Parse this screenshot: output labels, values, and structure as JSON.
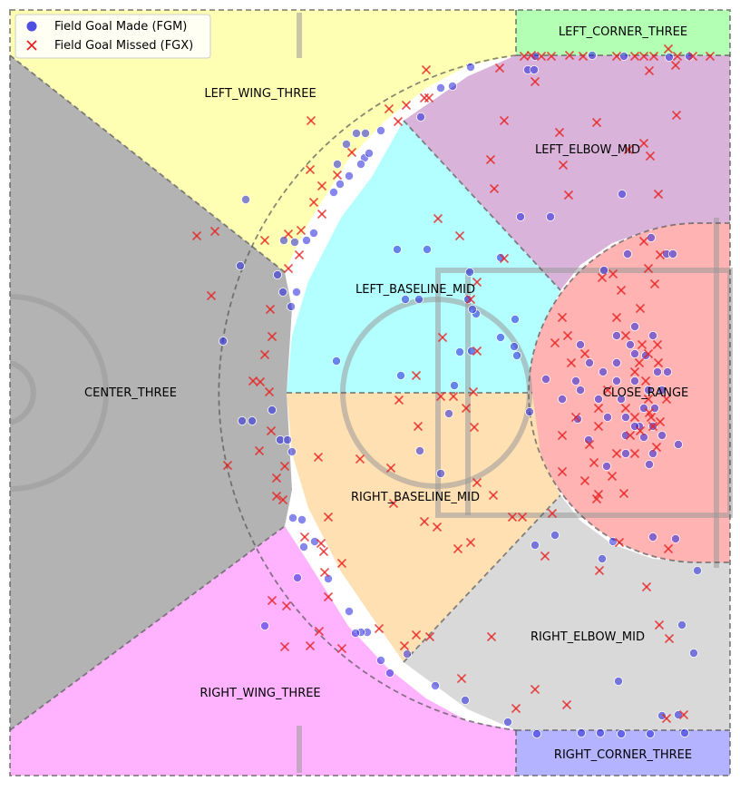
{
  "chart_data": {
    "type": "scatter",
    "title": "",
    "xlabel": "",
    "ylabel": "",
    "axes_visible": false,
    "grid": false,
    "legend": {
      "placement": "top-left",
      "entries": [
        {
          "label": "Field Goal Made (FGM)",
          "marker": "circle",
          "color": "#2222dd"
        },
        {
          "label": "Field Goal Missed (FGX)",
          "marker": "x",
          "color": "#e82020"
        }
      ]
    },
    "zones": [
      {
        "label": "LEFT_CORNER_THREE",
        "color": "#b3ffb3"
      },
      {
        "label": "LEFT_WING_THREE",
        "color": "#ffffb3"
      },
      {
        "label": "LEFT_ELBOW_MID",
        "color": "#d9b3d9"
      },
      {
        "label": "LEFT_BASELINE_MID",
        "color": "#b3ffff"
      },
      {
        "label": "CENTER_THREE",
        "color": "#b3b3b3"
      },
      {
        "label": "CLOSE_RANGE",
        "color": "#ffb3b3"
      },
      {
        "label": "RIGHT_BASELINE_MID",
        "color": "#ffe0b3"
      },
      {
        "label": "RIGHT_ELBOW_MID",
        "color": "#d9d9d9"
      },
      {
        "label": "RIGHT_WING_THREE",
        "color": "#ffb3ff"
      },
      {
        "label": "RIGHT_CORNER_THREE",
        "color": "#b3b3ff"
      }
    ],
    "series": [
      {
        "name": "Field Goal Made (FGM)",
        "marker": "circle",
        "color": "#2222dd",
        "points": [
          [
            582,
            77
          ],
          [
            589,
            77
          ],
          [
            590,
            62
          ],
          [
            653,
            61
          ],
          [
            688,
            62
          ],
          [
            738,
            63
          ],
          [
            760,
            62
          ],
          [
            519,
            74
          ],
          [
            499,
            95
          ],
          [
            486,
            97
          ],
          [
            464,
            129
          ],
          [
            420,
            144
          ],
          [
            393,
            147
          ],
          [
            403,
            147
          ],
          [
            382,
            159
          ],
          [
            372,
            181
          ],
          [
            402,
            174
          ],
          [
            407,
            169
          ],
          [
            398,
            181
          ],
          [
            385,
            194
          ],
          [
            375,
            203
          ],
          [
            368,
            212
          ],
          [
            271,
            220
          ],
          [
            313,
            265
          ],
          [
            325,
            267
          ],
          [
            338,
            265
          ],
          [
            346,
            257
          ],
          [
            265,
            293
          ],
          [
            306,
            303
          ],
          [
            327,
            322
          ],
          [
            312,
            322
          ],
          [
            321,
            338
          ],
          [
            246,
            376
          ],
          [
            267,
            464
          ],
          [
            278,
            464
          ],
          [
            300,
            452
          ],
          [
            309,
            485
          ],
          [
            317,
            485
          ],
          [
            322,
            498
          ],
          [
            323,
            571
          ],
          [
            333,
            573
          ],
          [
            438,
            275
          ],
          [
            471,
            275
          ],
          [
            447,
            330
          ],
          [
            462,
            330
          ],
          [
            518,
            300
          ],
          [
            552,
            284
          ],
          [
            516,
            330
          ],
          [
            525,
            346
          ],
          [
            521,
            341
          ],
          [
            568,
            352
          ],
          [
            552,
            372
          ],
          [
            567,
            382
          ],
          [
            570,
            392
          ],
          [
            520,
            387
          ],
          [
            507,
            388
          ],
          [
            442,
            414
          ],
          [
            501,
            425
          ],
          [
            371,
            398
          ],
          [
            495,
            456
          ],
          [
            463,
            497
          ],
          [
            486,
            522
          ],
          [
            574,
            239
          ],
          [
            607,
            239
          ],
          [
            686,
            214
          ],
          [
            718,
            262
          ],
          [
            666,
            298
          ],
          [
            692,
            280
          ],
          [
            735,
            280
          ],
          [
            742,
            280
          ],
          [
            584,
            454
          ],
          [
            602,
            418
          ],
          [
            620,
            440
          ],
          [
            637,
            462
          ],
          [
            649,
            485
          ],
          [
            669,
            514
          ],
          [
            716,
            512
          ],
          [
            748,
            490
          ],
          [
            590,
            601
          ],
          [
            612,
            590
          ],
          [
            664,
            616
          ],
          [
            676,
            597
          ],
          [
            720,
            592
          ],
          [
            745,
            594
          ],
          [
            769,
            629
          ],
          [
            752,
            689
          ],
          [
            765,
            720
          ],
          [
            730,
            789
          ],
          [
            748,
            788
          ],
          [
            755,
            808
          ],
          [
            717,
            809
          ],
          [
            685,
            809
          ],
          [
            662,
            808
          ],
          [
            641,
            808
          ],
          [
            592,
            809
          ],
          [
            682,
            751
          ],
          [
            560,
            796
          ],
          [
            513,
            772
          ],
          [
            480,
            756
          ],
          [
            449,
            721
          ],
          [
            430,
            742
          ],
          [
            420,
            728
          ],
          [
            405,
            697
          ],
          [
            398,
            697
          ],
          [
            392,
            698
          ],
          [
            385,
            674
          ],
          [
            362,
            638
          ],
          [
            328,
            637
          ],
          [
            292,
            690
          ],
          [
            335,
            603
          ],
          [
            347,
            597
          ],
          [
            640,
            430
          ],
          [
            660,
            440
          ],
          [
            680,
            400
          ],
          [
            700,
            420
          ],
          [
            710,
            450
          ],
          [
            720,
            470
          ],
          [
            690,
            480
          ],
          [
            670,
            460
          ],
          [
            700,
            390
          ],
          [
            725,
            410
          ],
          [
            715,
            430
          ],
          [
            705,
            470
          ],
          [
            690,
            460
          ],
          [
            680,
            420
          ],
          [
            695,
            380
          ],
          [
            712,
            392
          ],
          [
            730,
            430
          ],
          [
            722,
            450
          ],
          [
            700,
            470
          ],
          [
            685,
            440
          ],
          [
            710,
            482
          ],
          [
            730,
            480
          ],
          [
            720,
            370
          ],
          [
            700,
            360
          ],
          [
            665,
            410
          ],
          [
            650,
            400
          ],
          [
            635,
            420
          ],
          [
            640,
            380
          ],
          [
            690,
            500
          ],
          [
            720,
            500
          ],
          [
            736,
            410
          ],
          [
            680,
            370
          ]
        ]
      },
      {
        "name": "Field Goal Missed (FGX)",
        "marker": "x",
        "color": "#e82020",
        "points": [
          [
            586,
            61
          ],
          [
            597,
            62
          ],
          [
            608,
            62
          ],
          [
            628,
            61
          ],
          [
            643,
            62
          ],
          [
            680,
            62
          ],
          [
            700,
            62
          ],
          [
            710,
            62
          ],
          [
            721,
            62
          ],
          [
            737,
            54
          ],
          [
            747,
            62
          ],
          [
            764,
            62
          ],
          [
            783,
            62
          ],
          [
            716,
            78
          ],
          [
            745,
            72
          ],
          [
            590,
            90
          ],
          [
            578,
            62
          ],
          [
            551,
            75
          ],
          [
            470,
            77
          ],
          [
            468,
            108
          ],
          [
            473,
            108
          ],
          [
            448,
            116
          ],
          [
            429,
            120
          ],
          [
            439,
            134
          ],
          [
            343,
            133
          ],
          [
            342,
            187
          ],
          [
            372,
            193
          ],
          [
            388,
            168
          ],
          [
            355,
            205
          ],
          [
            346,
            223
          ],
          [
            355,
            236
          ],
          [
            332,
            254
          ],
          [
            318,
            258
          ],
          [
            330,
            281
          ],
          [
            318,
            296
          ],
          [
            217,
            260
          ],
          [
            237,
            255
          ],
          [
            233,
            326
          ],
          [
            292,
            265
          ],
          [
            298,
            341
          ],
          [
            292,
            391
          ],
          [
            300,
            371
          ],
          [
            287,
            421
          ],
          [
            279,
            420
          ],
          [
            297,
            432
          ],
          [
            299,
            475
          ],
          [
            286,
            497
          ],
          [
            251,
            513
          ],
          [
            305,
            527
          ],
          [
            314,
            514
          ],
          [
            305,
            547
          ],
          [
            312,
            551
          ],
          [
            483,
            241
          ],
          [
            507,
            260
          ],
          [
            556,
            285
          ],
          [
            526,
            311
          ],
          [
            519,
            330
          ],
          [
            488,
            372
          ],
          [
            526,
            387
          ],
          [
            459,
            414
          ],
          [
            522,
            432
          ],
          [
            500,
            437
          ],
          [
            486,
            437
          ],
          [
            514,
            450
          ],
          [
            523,
            471
          ],
          [
            461,
            470
          ],
          [
            440,
            441
          ],
          [
            397,
            506
          ],
          [
            431,
            516
          ],
          [
            434,
            555
          ],
          [
            351,
            504
          ],
          [
            362,
            570
          ],
          [
            468,
            575
          ],
          [
            482,
            581
          ],
          [
            519,
            598
          ],
          [
            505,
            605
          ],
          [
            565,
            570
          ],
          [
            576,
            570
          ],
          [
            609,
            566
          ],
          [
            544,
            546
          ],
          [
            526,
            532
          ],
          [
            556,
            133
          ],
          [
            617,
            146
          ],
          [
            658,
            135
          ],
          [
            621,
            182
          ],
          [
            541,
            176
          ],
          [
            545,
            208
          ],
          [
            627,
            215
          ],
          [
            693,
            165
          ],
          [
            710,
            158
          ],
          [
            717,
            172
          ],
          [
            726,
            214
          ],
          [
            746,
            127
          ],
          [
            710,
            266
          ],
          [
            715,
            296
          ],
          [
            728,
            281
          ],
          [
            722,
            313
          ],
          [
            676,
            302
          ],
          [
            664,
            306
          ],
          [
            685,
            320
          ],
          [
            706,
            340
          ],
          [
            660,
            545
          ],
          [
            658,
            550
          ],
          [
            688,
            544
          ],
          [
            683,
            598
          ],
          [
            737,
            605
          ],
          [
            661,
            629
          ],
          [
            601,
            613
          ],
          [
            713,
            647
          ],
          [
            727,
            689
          ],
          [
            738,
            704
          ],
          [
            542,
            702
          ],
          [
            509,
            748
          ],
          [
            590,
            760
          ],
          [
            569,
            781
          ],
          [
            625,
            777
          ],
          [
            735,
            792
          ],
          [
            754,
            788
          ],
          [
            474,
            702
          ],
          [
            459,
            700
          ],
          [
            446,
            712
          ],
          [
            418,
            693
          ],
          [
            377,
            715
          ],
          [
            352,
            696
          ],
          [
            342,
            712
          ],
          [
            314,
            713
          ],
          [
            300,
            662
          ],
          [
            316,
            668
          ],
          [
            362,
            658
          ],
          [
            358,
            631
          ],
          [
            336,
            592
          ],
          [
            354,
            599
          ],
          [
            377,
            621
          ],
          [
            357,
            608
          ],
          [
            660,
            450
          ],
          [
            670,
            430
          ],
          [
            700,
            410
          ],
          [
            715,
            440
          ],
          [
            718,
            460
          ],
          [
            705,
            400
          ],
          [
            690,
            450
          ],
          [
            715,
            390
          ],
          [
            720,
            470
          ],
          [
            695,
            480
          ],
          [
            660,
            470
          ],
          [
            650,
            490
          ],
          [
            635,
            460
          ],
          [
            630,
            400
          ],
          [
            645,
            390
          ],
          [
            725,
            380
          ],
          [
            735,
            440
          ],
          [
            706,
            475
          ],
          [
            680,
            500
          ],
          [
            655,
            510
          ],
          [
            700,
            500
          ],
          [
            690,
            370
          ],
          [
            680,
            350
          ],
          [
            620,
            350
          ],
          [
            612,
            378
          ],
          [
            626,
            370
          ],
          [
            620,
            480
          ],
          [
            620,
            520
          ],
          [
            645,
            530
          ],
          [
            675,
            525
          ],
          [
            724,
            493
          ],
          [
            712,
            420
          ],
          [
            726,
            400
          ],
          [
            708,
            380
          ],
          [
            700,
            460
          ],
          [
            716,
            455
          ],
          [
            728,
            465
          ]
        ]
      }
    ]
  }
}
